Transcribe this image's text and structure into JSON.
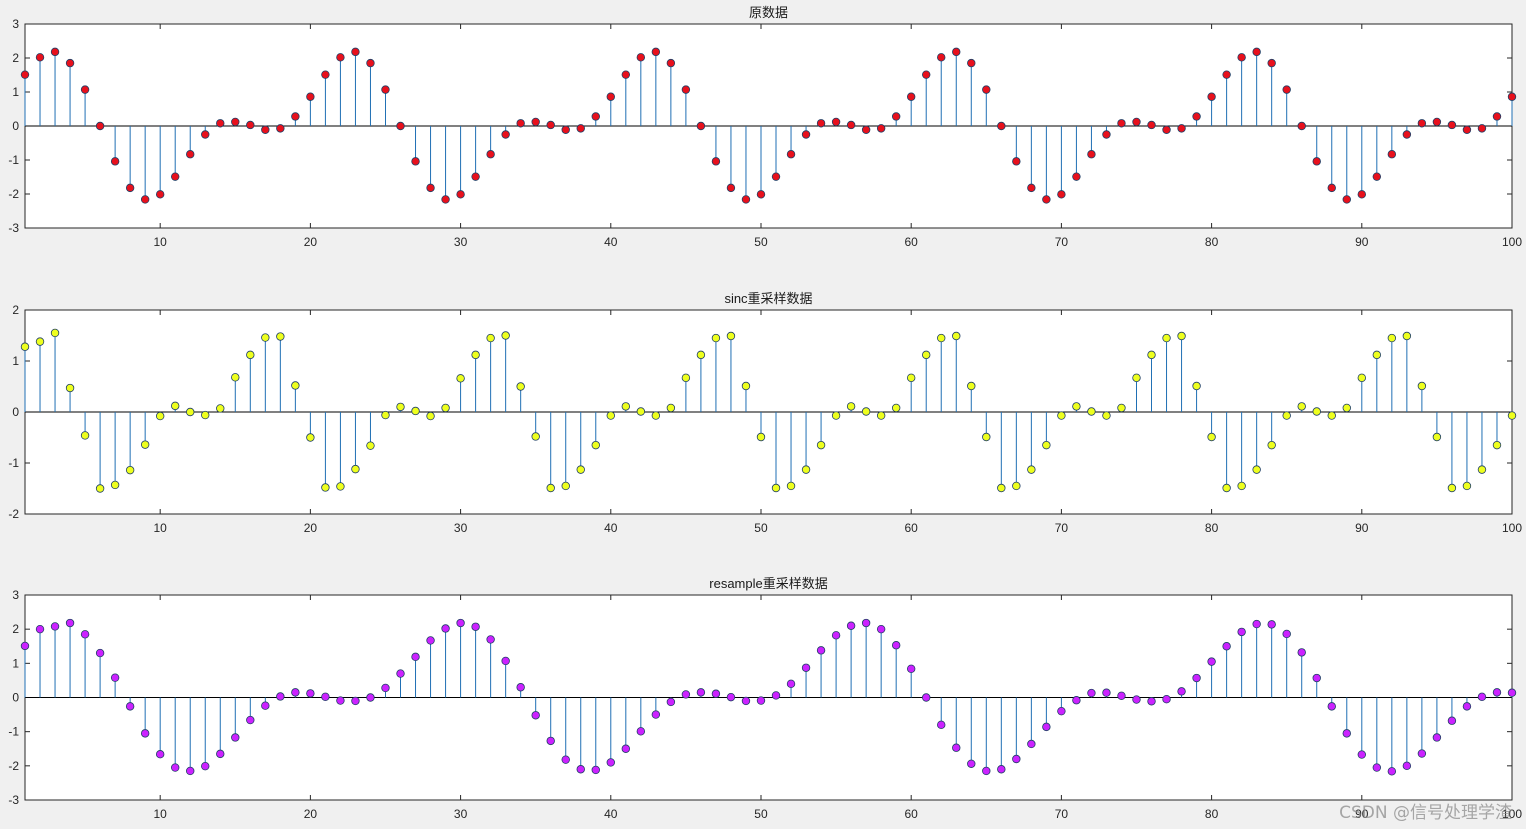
{
  "watermark": "CSDN @信号处理学渣",
  "chart_data": [
    {
      "type": "stem",
      "title": "原数据",
      "xlim": [
        1,
        100
      ],
      "ylim": [
        -3,
        3
      ],
      "xticks": [
        10,
        20,
        30,
        40,
        50,
        60,
        70,
        80,
        90,
        100
      ],
      "yticks": [
        -3,
        -2,
        -1,
        0,
        1,
        2,
        3
      ],
      "marker_color": "#e8101c",
      "stem_color": "#1f6fb4",
      "x_start": 1,
      "values": [
        1.51,
        2.02,
        2.18,
        1.85,
        1.07,
        0.0,
        -1.04,
        -1.82,
        -2.16,
        -2.01,
        -1.49,
        -0.83,
        -0.25,
        0.08,
        0.12,
        0.03,
        -0.11,
        -0.07,
        0.28,
        0.86,
        1.51,
        2.02,
        2.18,
        1.85,
        1.07,
        0.0,
        -1.04,
        -1.82,
        -2.16,
        -2.01,
        -1.49,
        -0.83,
        -0.25,
        0.08,
        0.12,
        0.03,
        -0.11,
        -0.07,
        0.28,
        0.86,
        1.51,
        2.02,
        2.18,
        1.85,
        1.07,
        0.0,
        -1.04,
        -1.82,
        -2.16,
        -2.01,
        -1.49,
        -0.83,
        -0.25,
        0.08,
        0.12,
        0.03,
        -0.11,
        -0.07,
        0.28,
        0.86,
        1.51,
        2.02,
        2.18,
        1.85,
        1.07,
        0.0,
        -1.04,
        -1.82,
        -2.16,
        -2.01,
        -1.49,
        -0.83,
        -0.25,
        0.08,
        0.12,
        0.03,
        -0.11,
        -0.07,
        0.28,
        0.86,
        1.51,
        2.02,
        2.18,
        1.85,
        1.07,
        0.0,
        -1.04,
        -1.82,
        -2.16,
        -2.01,
        -1.49,
        -0.83,
        -0.25,
        0.08,
        0.12,
        0.03,
        -0.11,
        -0.07,
        0.28,
        0.86
      ]
    },
    {
      "type": "stem",
      "title": "sinc重采样数据",
      "xlim": [
        1,
        100
      ],
      "ylim": [
        -2,
        2
      ],
      "xticks": [
        10,
        20,
        30,
        40,
        50,
        60,
        70,
        80,
        90,
        100
      ],
      "yticks": [
        -2,
        -1,
        0,
        1,
        2
      ],
      "marker_color": "#eeff1e",
      "stem_color": "#1f6fb4",
      "x_start": 1,
      "values": [
        1.28,
        1.38,
        1.55,
        0.47,
        -0.46,
        -1.5,
        -1.43,
        -1.14,
        -0.64,
        -0.08,
        0.12,
        0.0,
        -0.06,
        0.07,
        0.68,
        1.12,
        1.46,
        1.48,
        0.52,
        -0.5,
        -1.48,
        -1.46,
        -1.12,
        -0.66,
        -0.06,
        0.1,
        0.02,
        -0.08,
        0.08,
        0.66,
        1.12,
        1.45,
        1.5,
        0.5,
        -0.48,
        -1.49,
        -1.45,
        -1.13,
        -0.65,
        -0.07,
        0.11,
        0.01,
        -0.07,
        0.08,
        0.67,
        1.12,
        1.45,
        1.49,
        0.51,
        -0.49,
        -1.49,
        -1.45,
        -1.13,
        -0.65,
        -0.07,
        0.11,
        0.01,
        -0.07,
        0.08,
        0.67,
        1.12,
        1.45,
        1.49,
        0.51,
        -0.49,
        -1.49,
        -1.45,
        -1.13,
        -0.65,
        -0.07,
        0.11,
        0.01,
        -0.07,
        0.08,
        0.67,
        1.12,
        1.45,
        1.49,
        0.51,
        -0.49,
        -1.49,
        -1.45,
        -1.13,
        -0.65,
        -0.07,
        0.11,
        0.01,
        -0.07,
        0.08,
        0.67,
        1.12,
        1.45,
        1.49,
        0.51,
        -0.49,
        -1.49,
        -1.45,
        -1.13,
        -0.65,
        -0.07
      ]
    },
    {
      "type": "stem",
      "title": "resample重采样数据",
      "xlim": [
        1,
        100
      ],
      "ylim": [
        -3,
        3
      ],
      "xticks": [
        10,
        20,
        30,
        40,
        50,
        60,
        70,
        80,
        90,
        100
      ],
      "yticks": [
        -3,
        -2,
        -1,
        0,
        1,
        2,
        3
      ],
      "marker_color": "#cc22ff",
      "stem_color": "#1f6fb4",
      "x_start": 1,
      "values": [
        1.51,
        2.0,
        2.08,
        2.18,
        1.85,
        1.3,
        0.58,
        -0.26,
        -1.05,
        -1.66,
        -2.05,
        -2.15,
        -2.01,
        -1.65,
        -1.17,
        -0.66,
        -0.24,
        0.03,
        0.15,
        0.12,
        0.02,
        -0.09,
        -0.1,
        0.0,
        0.28,
        0.7,
        1.19,
        1.67,
        2.02,
        2.18,
        2.07,
        1.7,
        1.07,
        0.3,
        -0.52,
        -1.27,
        -1.82,
        -2.1,
        -2.12,
        -1.9,
        -1.5,
        -0.99,
        -0.5,
        -0.13,
        0.09,
        0.15,
        0.11,
        0.01,
        -0.1,
        -0.09,
        0.06,
        0.4,
        0.87,
        1.38,
        1.82,
        2.1,
        2.18,
        2.0,
        1.53,
        0.84,
        0.0,
        -0.8,
        -1.47,
        -1.94,
        -2.15,
        -2.1,
        -1.8,
        -1.36,
        -0.86,
        -0.4,
        -0.08,
        0.13,
        0.14,
        0.05,
        -0.06,
        -0.11,
        -0.05,
        0.18,
        0.57,
        1.05,
        1.5,
        1.92,
        2.15,
        2.14,
        1.86,
        1.32,
        0.57,
        -0.26,
        -1.05,
        -1.67,
        -2.05,
        -2.16,
        -2.0,
        -1.64,
        -1.17,
        -0.68,
        -0.26,
        0.02,
        0.15,
        0.14
      ]
    }
  ]
}
